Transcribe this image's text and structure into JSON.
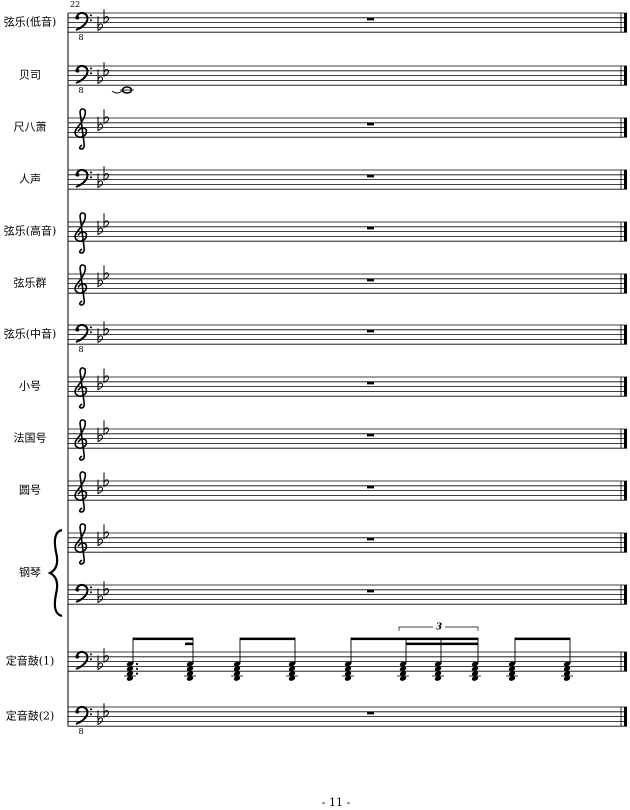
{
  "measure_number": "22",
  "staves": [
    {
      "label": "弦乐(低音)",
      "clef": "bass",
      "octave": "8"
    },
    {
      "label": "贝司",
      "clef": "bass",
      "octave": "8"
    },
    {
      "label": "尺八萧",
      "clef": "treble"
    },
    {
      "label": "人声",
      "clef": "bass"
    },
    {
      "label": "弦乐(高音)",
      "clef": "treble"
    },
    {
      "label": "弦乐群",
      "clef": "treble"
    },
    {
      "label": "弦乐(中音)",
      "clef": "bass",
      "octave": "8"
    },
    {
      "label": "小号",
      "clef": "treble"
    },
    {
      "label": "法国号",
      "clef": "treble"
    },
    {
      "label": "圆号",
      "clef": "treble"
    },
    {
      "clef": "treble"
    },
    {
      "clef": "bass"
    },
    {
      "label": "定音鼓(1)",
      "clef": "bass"
    },
    {
      "label": "定音鼓(2)",
      "clef": "bass",
      "octave": "8"
    }
  ],
  "piano_label": "钢琴",
  "tuplet": "3",
  "page_number": "- 11 -"
}
